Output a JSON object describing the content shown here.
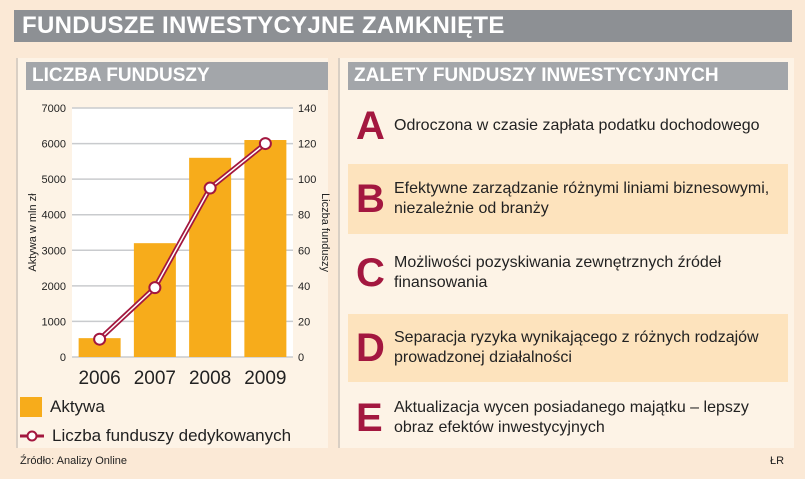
{
  "title": "FUNDUSZE INWESTYCYJNE ZAMKNIĘTE",
  "left_panel": {
    "heading": "LICZBA FUNDUSZY"
  },
  "chart_data": {
    "type": "bar+line",
    "categories": [
      "2006",
      "2007",
      "2008",
      "2009"
    ],
    "series": [
      {
        "name": "Aktywa",
        "type": "bar",
        "axis": "left",
        "values": [
          530,
          3200,
          5600,
          6100
        ],
        "color": "#f7ac1b"
      },
      {
        "name": "Liczba funduszy dedykowanych",
        "type": "line",
        "axis": "right",
        "values": [
          10,
          39,
          95,
          120
        ],
        "color": "#a3173f"
      }
    ],
    "ylabel": "Aktywa w mln zł",
    "ylim": [
      0,
      7000
    ],
    "yticks": [
      0,
      1000,
      2000,
      3000,
      4000,
      5000,
      6000,
      7000
    ],
    "y2label": "Liczba funduszy",
    "y2lim": [
      0,
      140
    ],
    "y2ticks": [
      0,
      20,
      40,
      60,
      80,
      100,
      120,
      140
    ],
    "grid": true,
    "legend": "bottom-left"
  },
  "source": "Źródło: Analizy Online",
  "author": "ŁR",
  "right_panel": {
    "heading": "ZALETY FUNDUSZY INWESTYCYJNYCH",
    "items": [
      {
        "letter": "A",
        "text": "Odroczona w czasie zapłata podatku dochodowego"
      },
      {
        "letter": "B",
        "text": "Efektywne zarządzanie różnymi liniami biznesowymi, niezależnie od branży"
      },
      {
        "letter": "C",
        "text": "Możliwości pozyskiwania zewnętrznych źródeł finansowania"
      },
      {
        "letter": "D",
        "text": "Separacja ryzyka wynikającego z różnych rodzajów prowadzonej działalności"
      },
      {
        "letter": "E",
        "text": "Aktualizacja wycen posiadanego majątku – lepszy obraz efektów inwestycyjnych"
      }
    ]
  }
}
